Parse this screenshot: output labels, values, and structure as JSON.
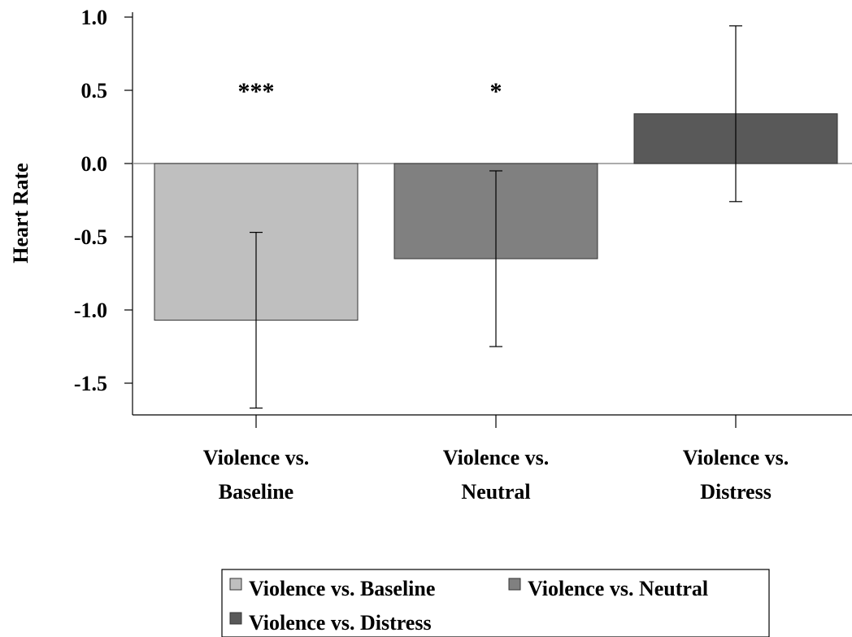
{
  "chart_data": {
    "type": "bar",
    "ylabel": "Heart Rate",
    "xlabel": "",
    "ylim": [
      -1.72,
      1.0
    ],
    "yticks": [
      1.0,
      0.5,
      0.0,
      -0.5,
      -1.0,
      -1.5
    ],
    "ytick_labels": [
      "1.0",
      "0.5",
      "0.0",
      "-0.5",
      "-1.0",
      "-1.5"
    ],
    "categories": [
      [
        "Violence vs.",
        "Baseline"
      ],
      [
        "Violence vs.",
        "Neutral"
      ],
      [
        "Violence vs.",
        "Distress"
      ]
    ],
    "values": [
      -1.07,
      -0.65,
      0.34
    ],
    "error_low": [
      -1.67,
      -1.25,
      -0.26
    ],
    "error_high": [
      -0.47,
      -0.05,
      0.94
    ],
    "significance": [
      "***",
      "*",
      ""
    ],
    "colors": [
      "#bfbfbf",
      "#808080",
      "#595959"
    ],
    "legend": {
      "placement": "bottom",
      "entries": [
        "Violence vs. Baseline",
        "Violence vs. Neutral",
        "Violence vs. Distress"
      ]
    },
    "grid": false
  }
}
